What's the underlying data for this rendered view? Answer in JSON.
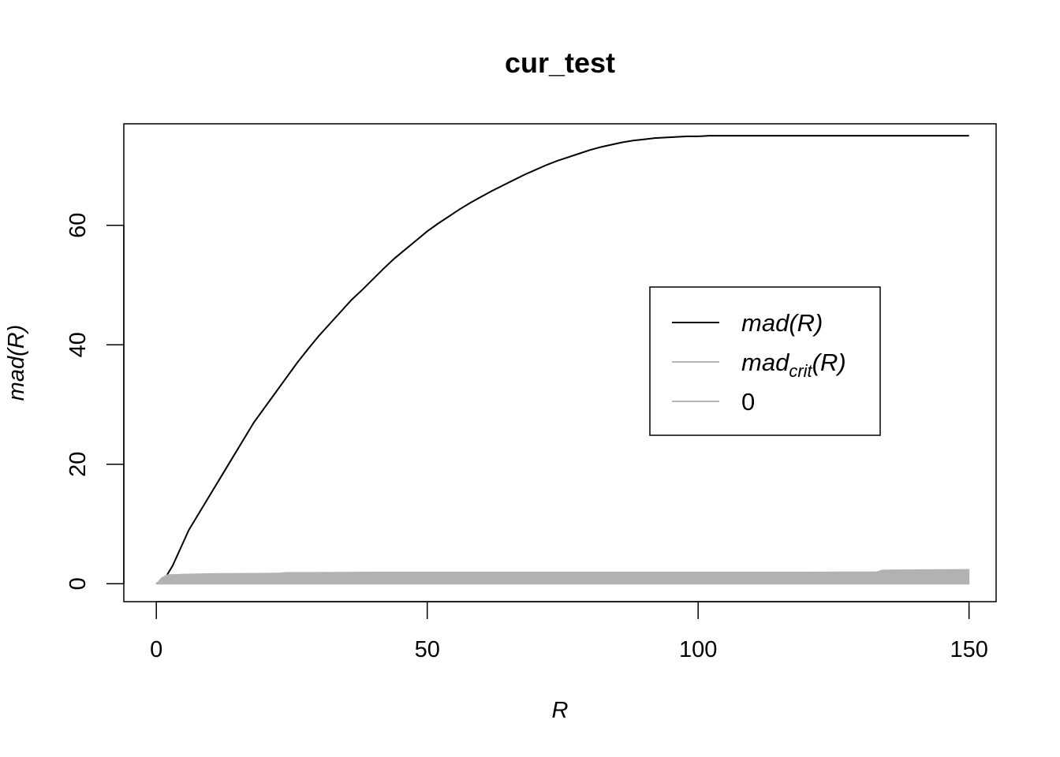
{
  "chart_data": {
    "type": "line",
    "title": "cur_test",
    "xlabel": "R",
    "ylabel": "mad(R)",
    "xlim": [
      -6,
      155
    ],
    "ylim": [
      -3,
      77
    ],
    "xticks": [
      0,
      50,
      100,
      150
    ],
    "yticks": [
      0,
      20,
      40,
      60
    ],
    "grid": false,
    "legend": {
      "placement": "center-right",
      "entries": [
        {
          "series": "mad",
          "main": "mad",
          "sub": "",
          "arg": "(R)",
          "italic": true
        },
        {
          "series": "mad_crit",
          "main": "mad",
          "sub": "crit",
          "arg": "(R)",
          "italic": true
        },
        {
          "series": "zero",
          "main": "0",
          "sub": "",
          "arg": "",
          "italic": false
        }
      ]
    },
    "series": [
      {
        "key": "mad",
        "color": "#000000",
        "kind": "line",
        "x": [
          0,
          1,
          2,
          3,
          4,
          5,
          6,
          7,
          8,
          9,
          10,
          12,
          14,
          16,
          18,
          20,
          22,
          24,
          26,
          28,
          30,
          32,
          34,
          36,
          38,
          40,
          42,
          44,
          46,
          48,
          50,
          52,
          54,
          56,
          58,
          60,
          62,
          64,
          66,
          68,
          70,
          72,
          74,
          76,
          78,
          80,
          82,
          84,
          86,
          88,
          90,
          92,
          94,
          96,
          98,
          100,
          102,
          105,
          110,
          120,
          130,
          140,
          150
        ],
        "y": [
          0,
          0.5,
          1.5,
          3.0,
          5.0,
          7.0,
          9.0,
          10.5,
          12.0,
          13.5,
          15.0,
          18.0,
          21.0,
          24.0,
          27.0,
          29.5,
          32.0,
          34.5,
          37.0,
          39.3,
          41.5,
          43.5,
          45.5,
          47.5,
          49.2,
          51.0,
          52.8,
          54.5,
          56.0,
          57.5,
          59.0,
          60.3,
          61.5,
          62.7,
          63.8,
          64.8,
          65.8,
          66.7,
          67.6,
          68.5,
          69.3,
          70.1,
          70.8,
          71.4,
          72.0,
          72.6,
          73.1,
          73.5,
          73.9,
          74.2,
          74.4,
          74.6,
          74.7,
          74.8,
          74.9,
          74.9,
          75.0,
          75.0,
          75.0,
          75.0,
          75.0,
          75.0,
          75.0
        ]
      },
      {
        "key": "mad_crit",
        "color": "#b2b2b2",
        "kind": "band",
        "x": [
          0,
          1,
          2,
          5,
          10,
          20,
          23,
          24,
          30,
          40,
          60,
          80,
          100,
          120,
          133,
          134,
          140,
          150
        ],
        "y": [
          0,
          1.0,
          1.5,
          1.6,
          1.7,
          1.75,
          1.8,
          1.9,
          1.9,
          1.95,
          1.95,
          1.95,
          1.95,
          1.95,
          2.0,
          2.3,
          2.35,
          2.4
        ]
      },
      {
        "key": "zero",
        "color": "#b2b2b2",
        "kind": "line",
        "x": [
          0,
          150
        ],
        "y": [
          0,
          0
        ]
      }
    ]
  }
}
